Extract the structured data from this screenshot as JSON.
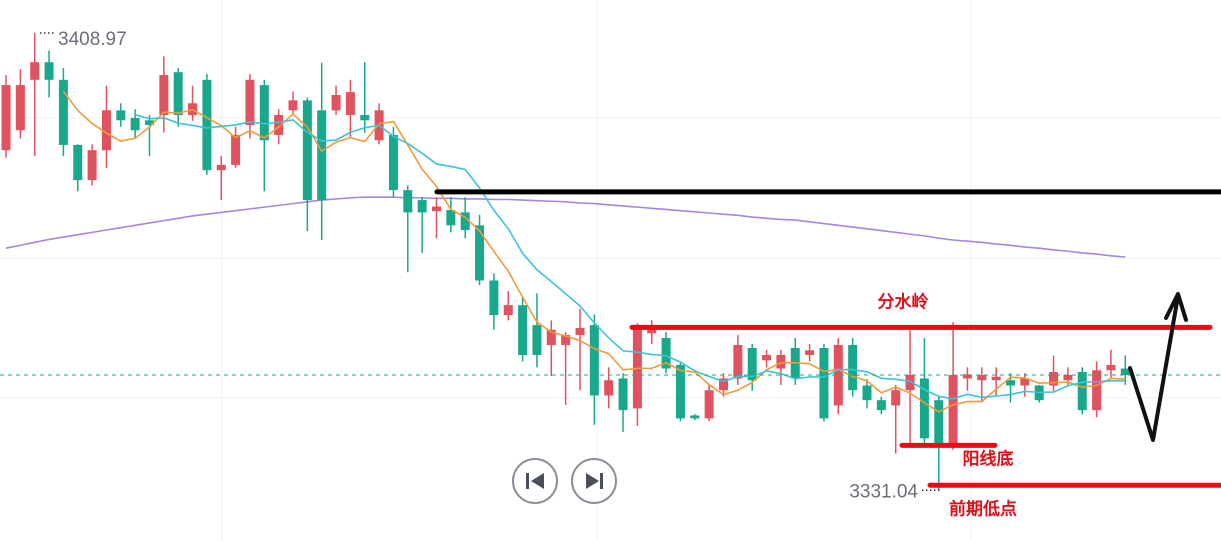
{
  "chart_data": {
    "type": "candlestick",
    "ylim": [
      3322.4,
      3414.6
    ],
    "up_color": "#e0525e",
    "down_color": "#1aa88c",
    "candles": [
      [
        3389.0,
        3401.8,
        3387.7,
        3400.1
      ],
      [
        3392.4,
        3402.8,
        3391.0,
        3400.1
      ],
      [
        3401.0,
        3408.97,
        3388.0,
        3404.0
      ],
      [
        3404.0,
        3406.0,
        3398.0,
        3401.0
      ],
      [
        3401.0,
        3403.0,
        3388.0,
        3389.9
      ],
      [
        3389.9,
        3390.0,
        3382.0,
        3383.9
      ],
      [
        3383.9,
        3390.0,
        3383.0,
        3389.0
      ],
      [
        3389.0,
        3400.0,
        3386.0,
        3395.8
      ],
      [
        3395.8,
        3397.0,
        3393.0,
        3394.1
      ],
      [
        3394.5,
        3396.0,
        3391.0,
        3392.4
      ],
      [
        3394.1,
        3395.0,
        3388.0,
        3393.3
      ],
      [
        3395.0,
        3405.0,
        3392.0,
        3401.8
      ],
      [
        3402.3,
        3403.0,
        3393.0,
        3395.0
      ],
      [
        3395.0,
        3400.0,
        3394.0,
        3397.0
      ],
      [
        3401.0,
        3402.0,
        3384.8,
        3385.6
      ],
      [
        3385.6,
        3388.0,
        3380.5,
        3386.5
      ],
      [
        3386.5,
        3393.0,
        3386.0,
        3391.6
      ],
      [
        3393.3,
        3402.0,
        3391.0,
        3401.0
      ],
      [
        3400.1,
        3401.0,
        3382.0,
        3390.7
      ],
      [
        3391.6,
        3396.0,
        3390.0,
        3395.0
      ],
      [
        3395.8,
        3399.0,
        3395.0,
        3397.5
      ],
      [
        3397.5,
        3398.0,
        3375.2,
        3380.5
      ],
      [
        3395.8,
        3403.9,
        3373.7,
        3380.5
      ],
      [
        3395.8,
        3400.0,
        3395.0,
        3398.4
      ],
      [
        3395.0,
        3401.0,
        3391.0,
        3398.9
      ],
      [
        3395.0,
        3404.0,
        3392.0,
        3394.1
      ],
      [
        3390.7,
        3397.0,
        3390.0,
        3395.8
      ],
      [
        3391.6,
        3393.0,
        3381.0,
        3382.2
      ],
      [
        3382.2,
        3383.0,
        3368.2,
        3378.4
      ],
      [
        3380.5,
        3381.0,
        3371.5,
        3378.4
      ],
      [
        3378.6,
        3381.0,
        3374.0,
        3379.4
      ],
      [
        3378.8,
        3381.0,
        3375.0,
        3376.2
      ],
      [
        3378.4,
        3381.0,
        3374.0,
        3375.4
      ],
      [
        3376.2,
        3378.0,
        3366.0,
        3366.8
      ],
      [
        3366.8,
        3368.0,
        3358.4,
        3360.9
      ],
      [
        3360.9,
        3365.0,
        3360.0,
        3362.6
      ],
      [
        3362.6,
        3364.0,
        3353.0,
        3354.1
      ],
      [
        3359.2,
        3364.6,
        3352.0,
        3354.1
      ],
      [
        3355.8,
        3360.0,
        3350.5,
        3358.4
      ],
      [
        3355.8,
        3358.0,
        3345.6,
        3357.5
      ],
      [
        3357.5,
        3362.0,
        3348.1,
        3358.7
      ],
      [
        3359.2,
        3361.0,
        3342.2,
        3347.2
      ],
      [
        3347.2,
        3352.0,
        3345.0,
        3349.8
      ],
      [
        3350.1,
        3351.0,
        3341.0,
        3344.7
      ],
      [
        3345.0,
        3359.5,
        3342.0,
        3358.7
      ],
      [
        3357.8,
        3360.0,
        3356.0,
        3358.8
      ],
      [
        3357.0,
        3358.0,
        3351.0,
        3351.8
      ],
      [
        3352.4,
        3353.0,
        3342.8,
        3343.3
      ],
      [
        3343.8,
        3344.0,
        3343.0,
        3343.3
      ],
      [
        3343.3,
        3349.0,
        3342.8,
        3348.1
      ],
      [
        3348.1,
        3351.0,
        3347.0,
        3350.1
      ],
      [
        3350.1,
        3357.5,
        3349.0,
        3355.8
      ],
      [
        3355.3,
        3356.0,
        3348.0,
        3349.8
      ],
      [
        3353.2,
        3355.0,
        3352.0,
        3354.1
      ],
      [
        3351.8,
        3355.0,
        3349.0,
        3354.1
      ],
      [
        3355.3,
        3357.0,
        3349.0,
        3350.1
      ],
      [
        3354.1,
        3356.0,
        3353.0,
        3354.9
      ],
      [
        3355.3,
        3356.0,
        3342.8,
        3343.3
      ],
      [
        3345.5,
        3357.0,
        3344.0,
        3355.8
      ],
      [
        3355.8,
        3357.0,
        3347.0,
        3348.1
      ],
      [
        3348.9,
        3350.0,
        3345.0,
        3346.4
      ],
      [
        3346.4,
        3347.0,
        3344.0,
        3344.7
      ],
      [
        3345.5,
        3349.0,
        3337.3,
        3348.1
      ],
      [
        3348.1,
        3358.4,
        3338.7,
        3350.7
      ],
      [
        3350.1,
        3357.0,
        3338.5,
        3339.9
      ],
      [
        3346.4,
        3347.0,
        3331.04,
        3338.7
      ],
      [
        3338.7,
        3359.7,
        3337.9,
        3350.7
      ],
      [
        3350.1,
        3352.0,
        3348.0,
        3350.8
      ],
      [
        3349.8,
        3352.0,
        3346.0,
        3350.7
      ],
      [
        3349.8,
        3352.0,
        3347.0,
        3350.4
      ],
      [
        3349.8,
        3351.0,
        3346.0,
        3348.9
      ],
      [
        3348.9,
        3351.0,
        3347.0,
        3350.1
      ],
      [
        3348.9,
        3349.0,
        3346.0,
        3346.4
      ],
      [
        3348.9,
        3354.0,
        3348.0,
        3351.2
      ],
      [
        3349.8,
        3352.0,
        3349.0,
        3350.7
      ],
      [
        3351.2,
        3352.0,
        3344.0,
        3344.7
      ],
      [
        3344.7,
        3353.0,
        3343.5,
        3351.5
      ],
      [
        3351.5,
        3355.0,
        3350.0,
        3352.4
      ],
      [
        3351.8,
        3354.0,
        3349.0,
        3350.7
      ]
    ],
    "moving_averages": [
      {
        "period": 5,
        "color": "#f29a3a"
      },
      {
        "period": 10,
        "color": "#3cc3d6"
      }
    ],
    "long_ma": {
      "color": "#a487e0",
      "values": [
        3372.3,
        3372.8,
        3373.3,
        3373.8,
        3374.2,
        3374.6,
        3375.0,
        3375.4,
        3375.8,
        3376.2,
        3376.6,
        3377.0,
        3377.4,
        3377.8,
        3378.1,
        3378.4,
        3378.7,
        3379.0,
        3379.3,
        3379.6,
        3379.9,
        3380.2,
        3380.5,
        3380.7,
        3380.9,
        3381.0,
        3381.0,
        3381.0,
        3380.9,
        3380.9,
        3380.8,
        3380.8,
        3380.7,
        3380.7,
        3380.6,
        3380.6,
        3380.5,
        3380.4,
        3380.3,
        3380.2,
        3380.0,
        3379.9,
        3379.7,
        3379.5,
        3379.3,
        3379.1,
        3378.9,
        3378.7,
        3378.5,
        3378.3,
        3378.1,
        3377.9,
        3377.6,
        3377.4,
        3377.2,
        3377.1,
        3376.8,
        3376.5,
        3376.2,
        3375.9,
        3375.6,
        3375.3,
        3375.0,
        3374.7,
        3374.4,
        3374.0,
        3373.7,
        3373.5,
        3373.3,
        3373.0,
        3372.8,
        3372.5,
        3372.3,
        3372.0,
        3371.8,
        3371.5,
        3371.3,
        3371.0,
        3370.8
      ]
    },
    "max_marker": 3408.97,
    "min_marker": 3331.04,
    "lines": [
      {
        "value": 3381.9,
        "color": "#000000"
      },
      {
        "label": "分水岭",
        "value": 3358.8,
        "color": "#ee0a14"
      },
      {
        "label": "阳线底",
        "value": 3338.7,
        "color": "#ee0a14"
      },
      {
        "label": "前期低点",
        "value": 3331.9,
        "color": "#ee0a14"
      }
    ]
  }
}
